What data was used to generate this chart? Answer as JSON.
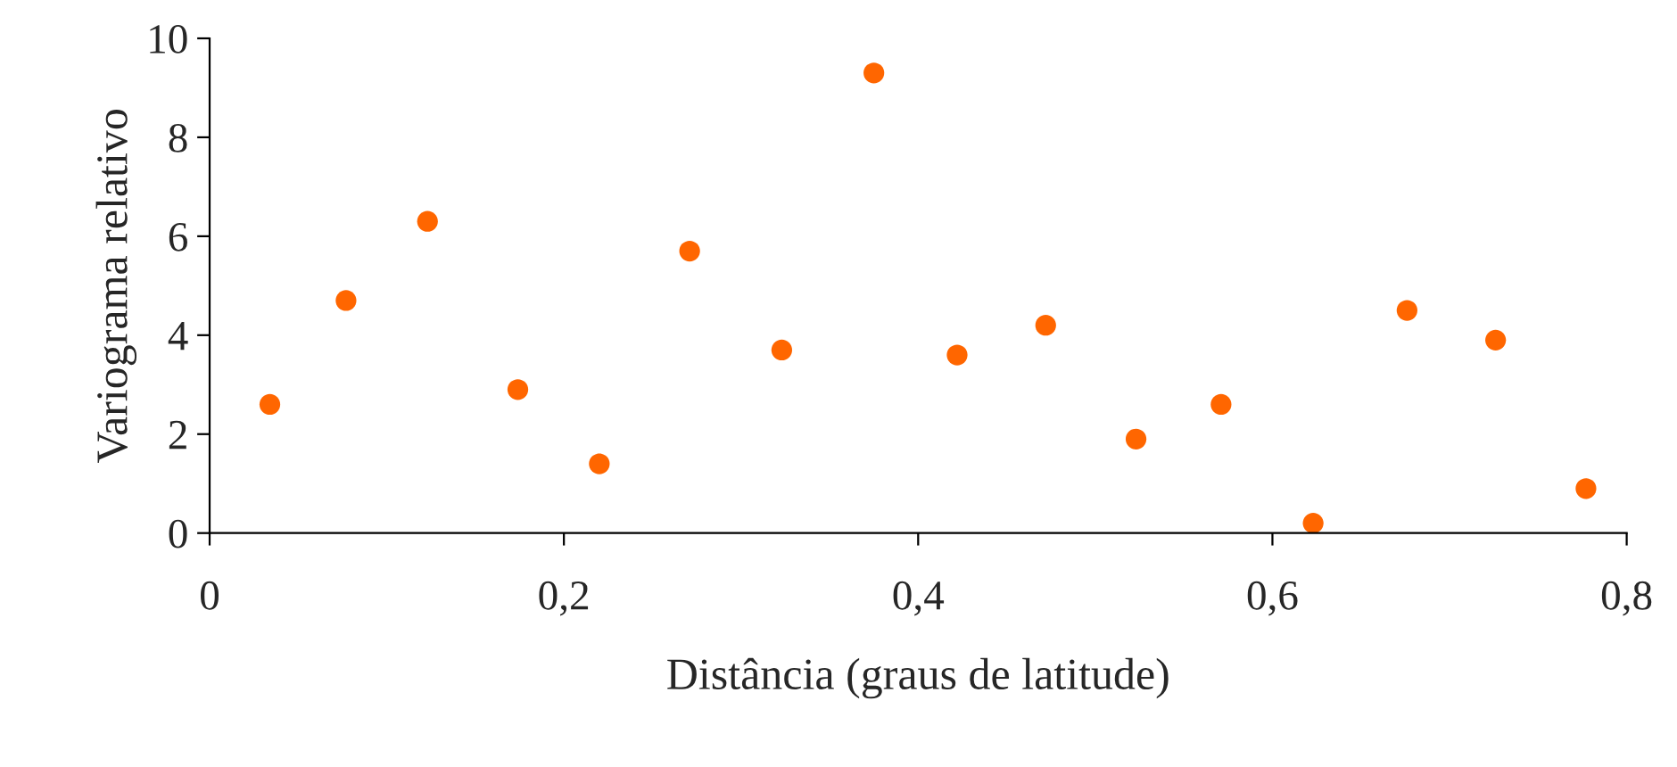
{
  "chart_data": {
    "type": "scatter",
    "xlabel": "Distância (graus de latitude)",
    "ylabel": "Variograma relativo",
    "x": [
      0.034,
      0.077,
      0.123,
      0.174,
      0.22,
      0.271,
      0.323,
      0.375,
      0.422,
      0.472,
      0.523,
      0.571,
      0.623,
      0.676,
      0.726,
      0.777
    ],
    "values": [
      2.6,
      4.7,
      6.3,
      2.9,
      1.4,
      5.7,
      3.7,
      9.3,
      3.6,
      4.2,
      1.9,
      2.6,
      0.2,
      4.5,
      3.9,
      0.9
    ],
    "color": "#ff6600",
    "marker": "circle",
    "grid": false,
    "xlim": [
      0,
      0.8
    ],
    "xticks": [
      {
        "value": 0,
        "label": "0"
      },
      {
        "value": 0.2,
        "label": "0,2"
      },
      {
        "value": 0.4,
        "label": "0,4"
      },
      {
        "value": 0.6,
        "label": "0,6"
      },
      {
        "value": 0.8,
        "label": "0,8"
      }
    ],
    "ylim": [
      0,
      10
    ],
    "yticks": [
      0,
      2,
      4,
      6,
      8,
      10
    ]
  }
}
